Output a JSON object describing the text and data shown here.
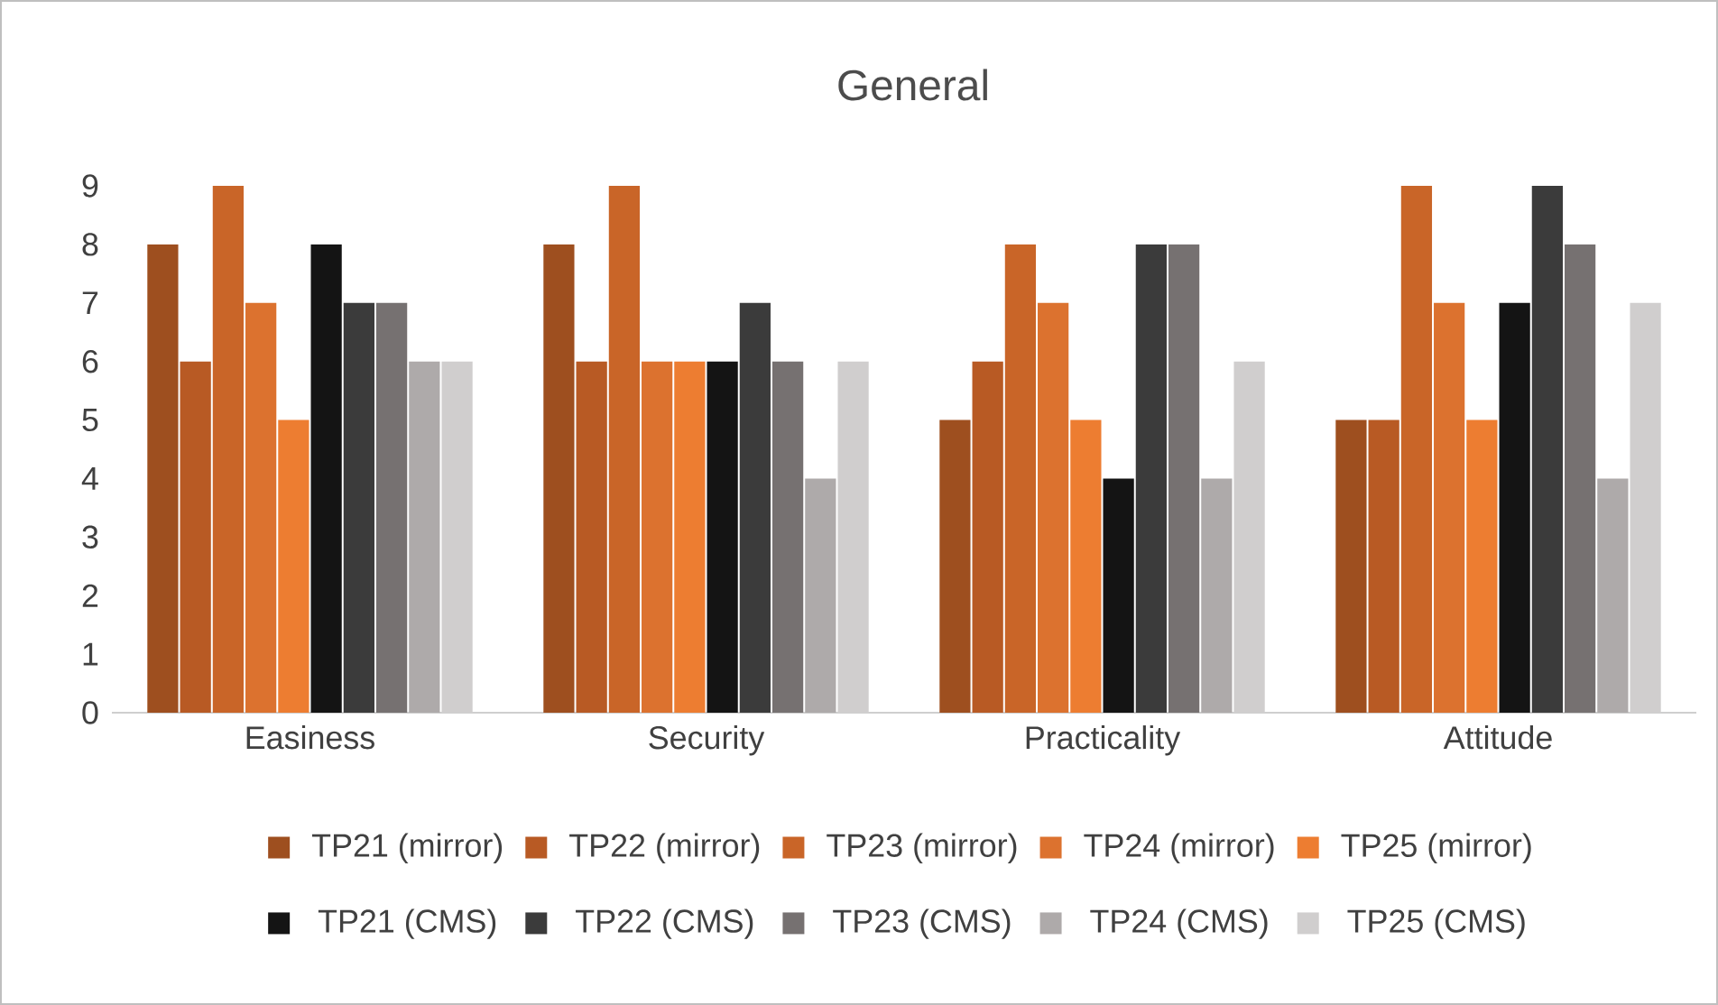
{
  "chart_data": {
    "type": "bar",
    "title": "General",
    "categories": [
      "Easiness",
      "Security",
      "Practicality",
      "Attitude"
    ],
    "series": [
      {
        "name": "TP21 (mirror)",
        "color": "#9e4f1f",
        "values": [
          8,
          8,
          5,
          5
        ]
      },
      {
        "name": "TP22 (mirror)",
        "color": "#b85a24",
        "values": [
          6,
          6,
          6,
          5
        ]
      },
      {
        "name": "TP23 (mirror)",
        "color": "#c96528",
        "values": [
          9,
          9,
          8,
          9
        ]
      },
      {
        "name": "TP24 (mirror)",
        "color": "#dc722f",
        "values": [
          7,
          6,
          7,
          7
        ]
      },
      {
        "name": "TP25 (mirror)",
        "color": "#ed7d31",
        "values": [
          5,
          6,
          5,
          5
        ]
      },
      {
        "name": "TP21 (CMS)",
        "color": "#141414",
        "values": [
          8,
          6,
          4,
          7
        ]
      },
      {
        "name": "TP22 (CMS)",
        "color": "#3b3b3b",
        "values": [
          7,
          7,
          8,
          9
        ]
      },
      {
        "name": "TP23 (CMS)",
        "color": "#767171",
        "values": [
          7,
          6,
          8,
          8
        ]
      },
      {
        "name": "TP24 (CMS)",
        "color": "#aeaaaa",
        "values": [
          6,
          4,
          4,
          4
        ]
      },
      {
        "name": "TP25 (CMS)",
        "color": "#d0cece",
        "values": [
          6,
          6,
          6,
          7
        ]
      }
    ],
    "ylim": [
      0,
      9
    ],
    "yticks": [
      0,
      1,
      2,
      3,
      4,
      5,
      6,
      7,
      8,
      9
    ],
    "grid": false,
    "legend": "bottom"
  }
}
